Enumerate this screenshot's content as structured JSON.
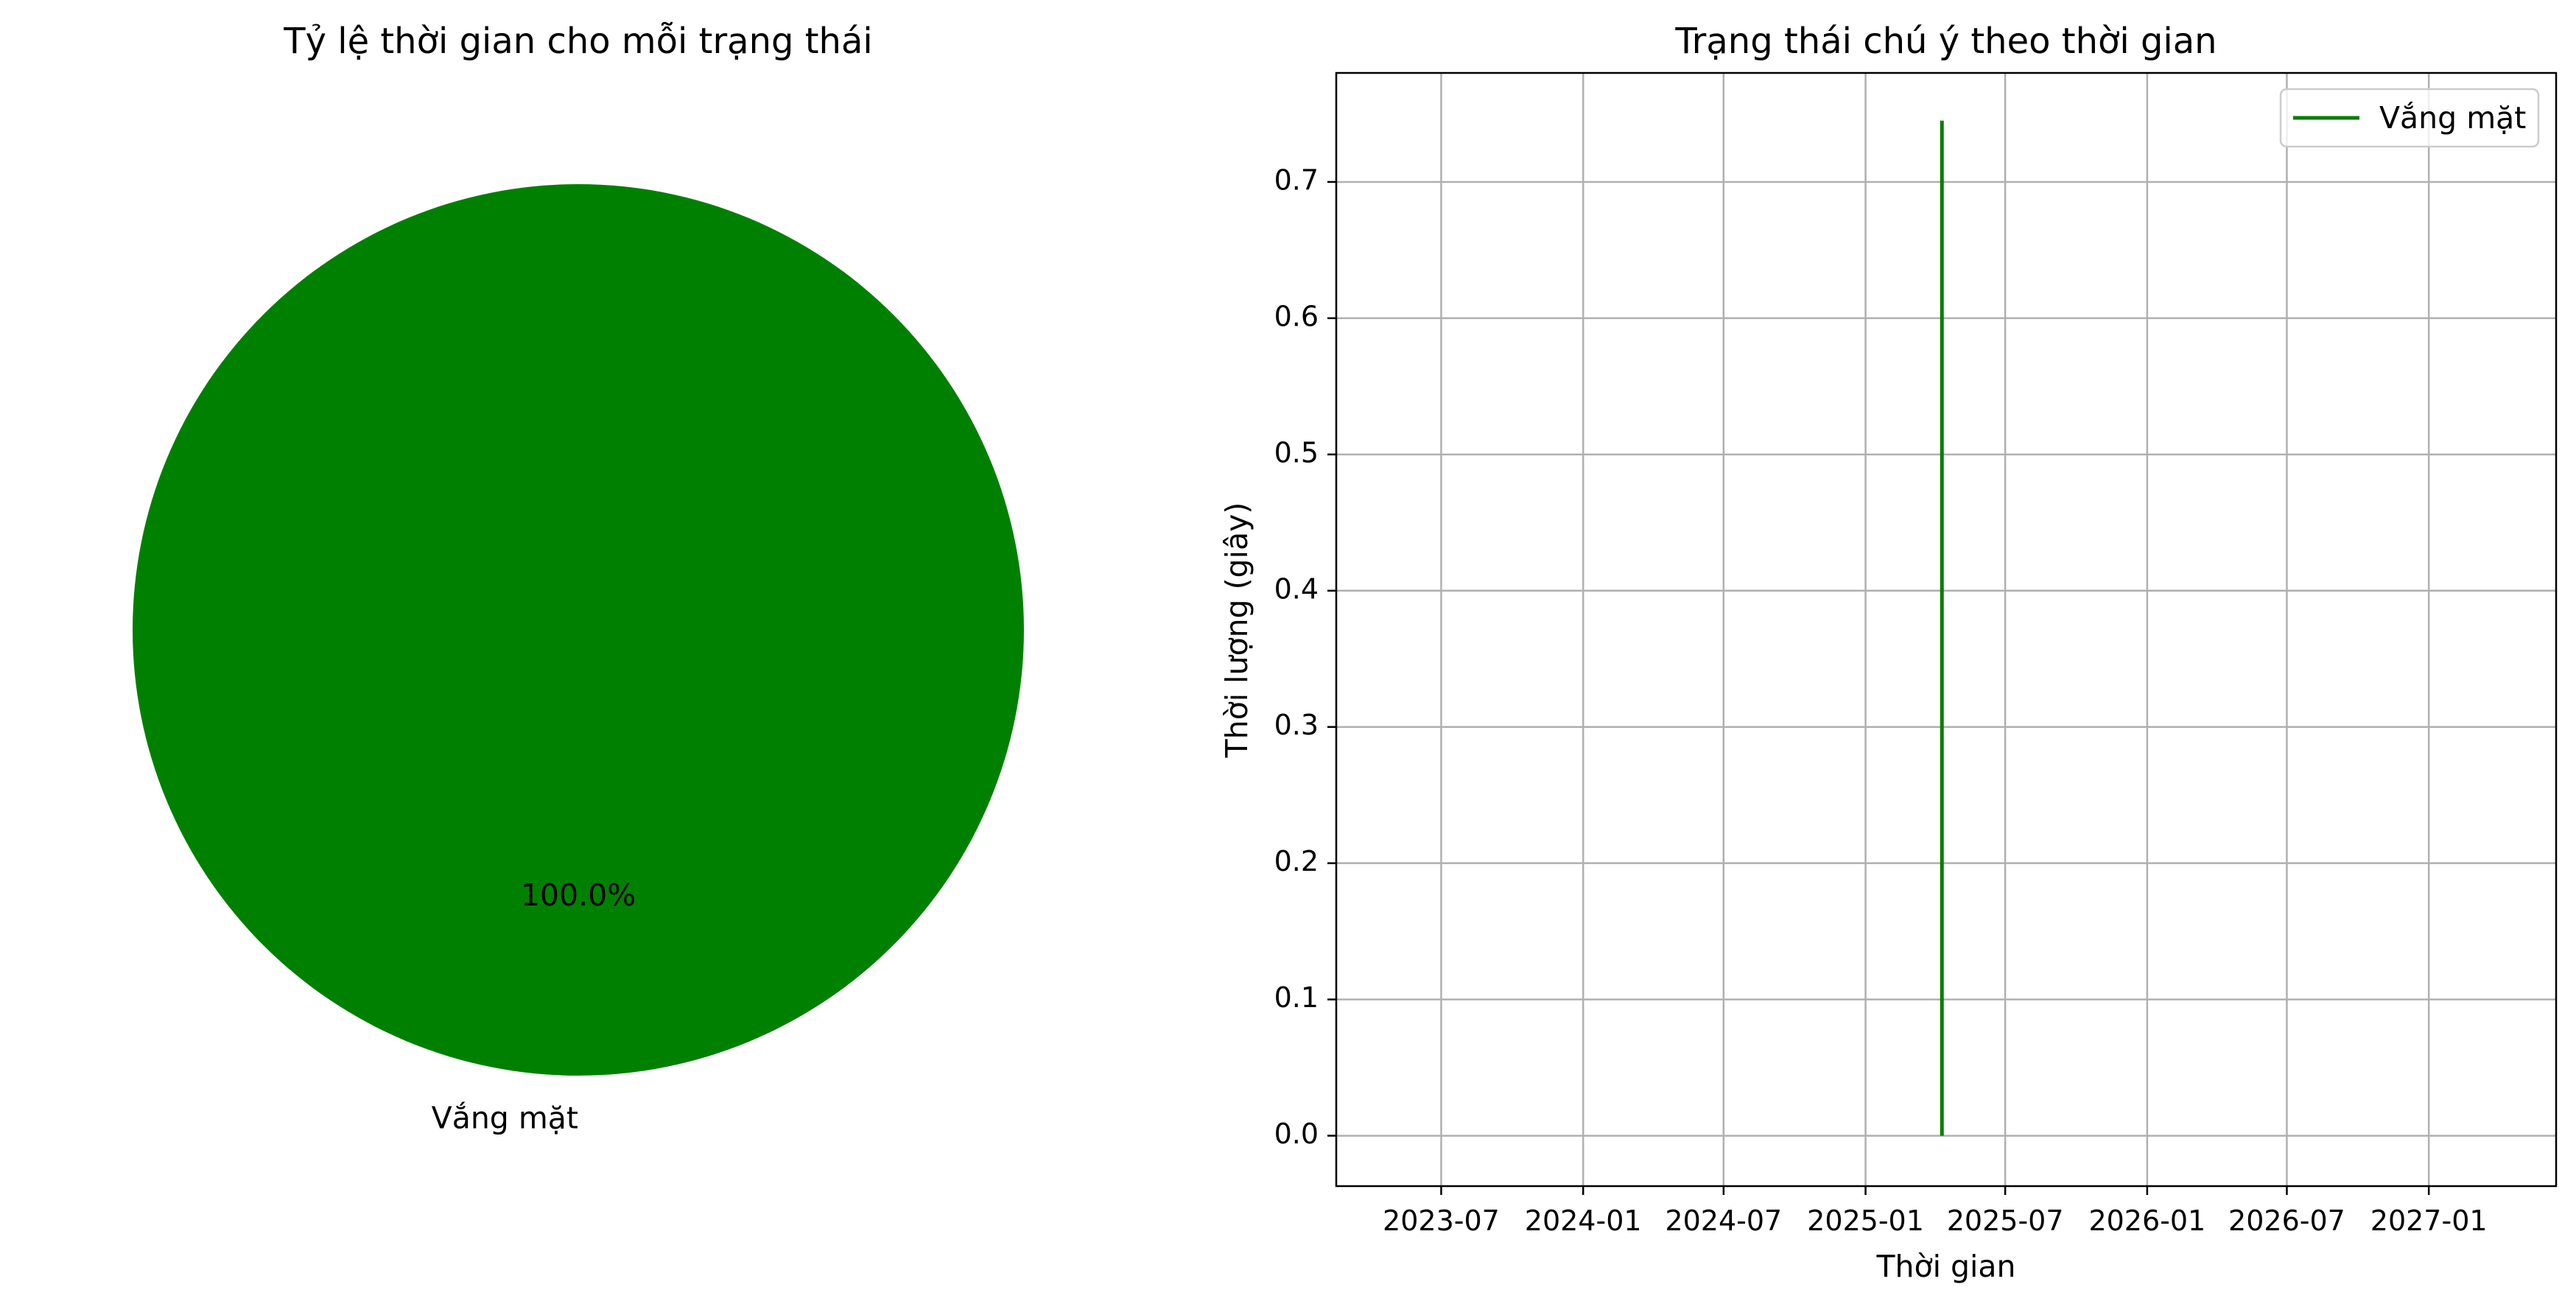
{
  "chart_data": [
    {
      "type": "pie",
      "title": "Tỷ lệ thời gian cho mỗi trạng thái",
      "labels": [
        "Vắng mặt"
      ],
      "values": [
        100.0
      ],
      "autopct": [
        "100.0%"
      ],
      "colors": [
        "#008000"
      ]
    },
    {
      "type": "line",
      "title": "Trạng thái chú ý theo thời gian",
      "xlabel": "Thời gian",
      "ylabel": "Thời lượng (giây)",
      "x_ticks": [
        "2023-07",
        "2024-01",
        "2024-07",
        "2025-01",
        "2025-07",
        "2026-01",
        "2026-07",
        "2027-01"
      ],
      "y_ticks": [
        "0.0",
        "0.1",
        "0.2",
        "0.3",
        "0.4",
        "0.5",
        "0.6",
        "0.7"
      ],
      "xlim": [
        "2023-02-15",
        "2027-06-15"
      ],
      "ylim": [
        -0.037,
        0.78
      ],
      "grid": true,
      "legend_position": "upper-right",
      "series": [
        {
          "name": "Vắng mặt",
          "color": "#008000",
          "x": [
            "2025-04-10",
            "2025-04-10"
          ],
          "y": [
            0.0,
            0.745
          ]
        }
      ]
    }
  ]
}
